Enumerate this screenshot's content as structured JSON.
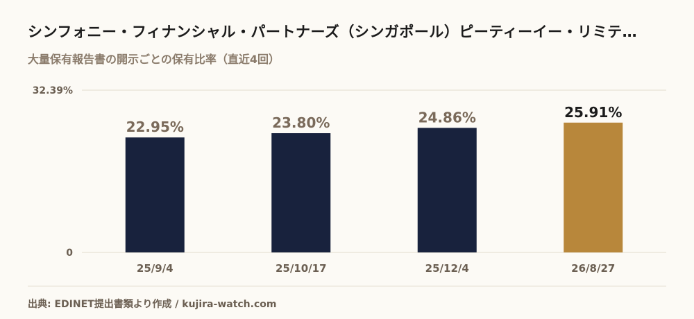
{
  "header": {
    "title": "シンフォニー・フィナンシャル・パートナーズ（シンガポール）ピーティーイー・リミテ…",
    "subtitle": "大量保有報告書の開示ごとの保有比率（直近4回）"
  },
  "footer": {
    "source": "出典: EDINET提出書類より作成 / kujira-watch.com"
  },
  "colors": {
    "bar": "#18223d",
    "bar_highlight": "#b8873b",
    "label": "#7a6a5a",
    "label_highlight": "#1b1b1b",
    "grid": "#e2dccd",
    "axis_text": "#6b5f52"
  },
  "chart_data": {
    "type": "bar",
    "title": "シンフォニー・フィナンシャル・パートナーズ（シンガポール）ピーティーイー・リミテ…",
    "subtitle": "大量保有報告書の開示ごとの保有比率（直近4回）",
    "categories": [
      "25/9/4",
      "25/10/17",
      "25/12/4",
      "26/8/27"
    ],
    "values": [
      22.95,
      23.8,
      24.86,
      25.91
    ],
    "value_labels": [
      "22.95%",
      "23.80%",
      "24.86%",
      "25.91%"
    ],
    "highlight_index": 3,
    "ylim": [
      0,
      32.39
    ],
    "y_ticks": [
      {
        "value": 32.39,
        "label": "32.39%"
      },
      {
        "value": 0,
        "label": "0"
      }
    ],
    "xlabel": "",
    "ylabel": "",
    "grid": true,
    "legend": "none"
  }
}
